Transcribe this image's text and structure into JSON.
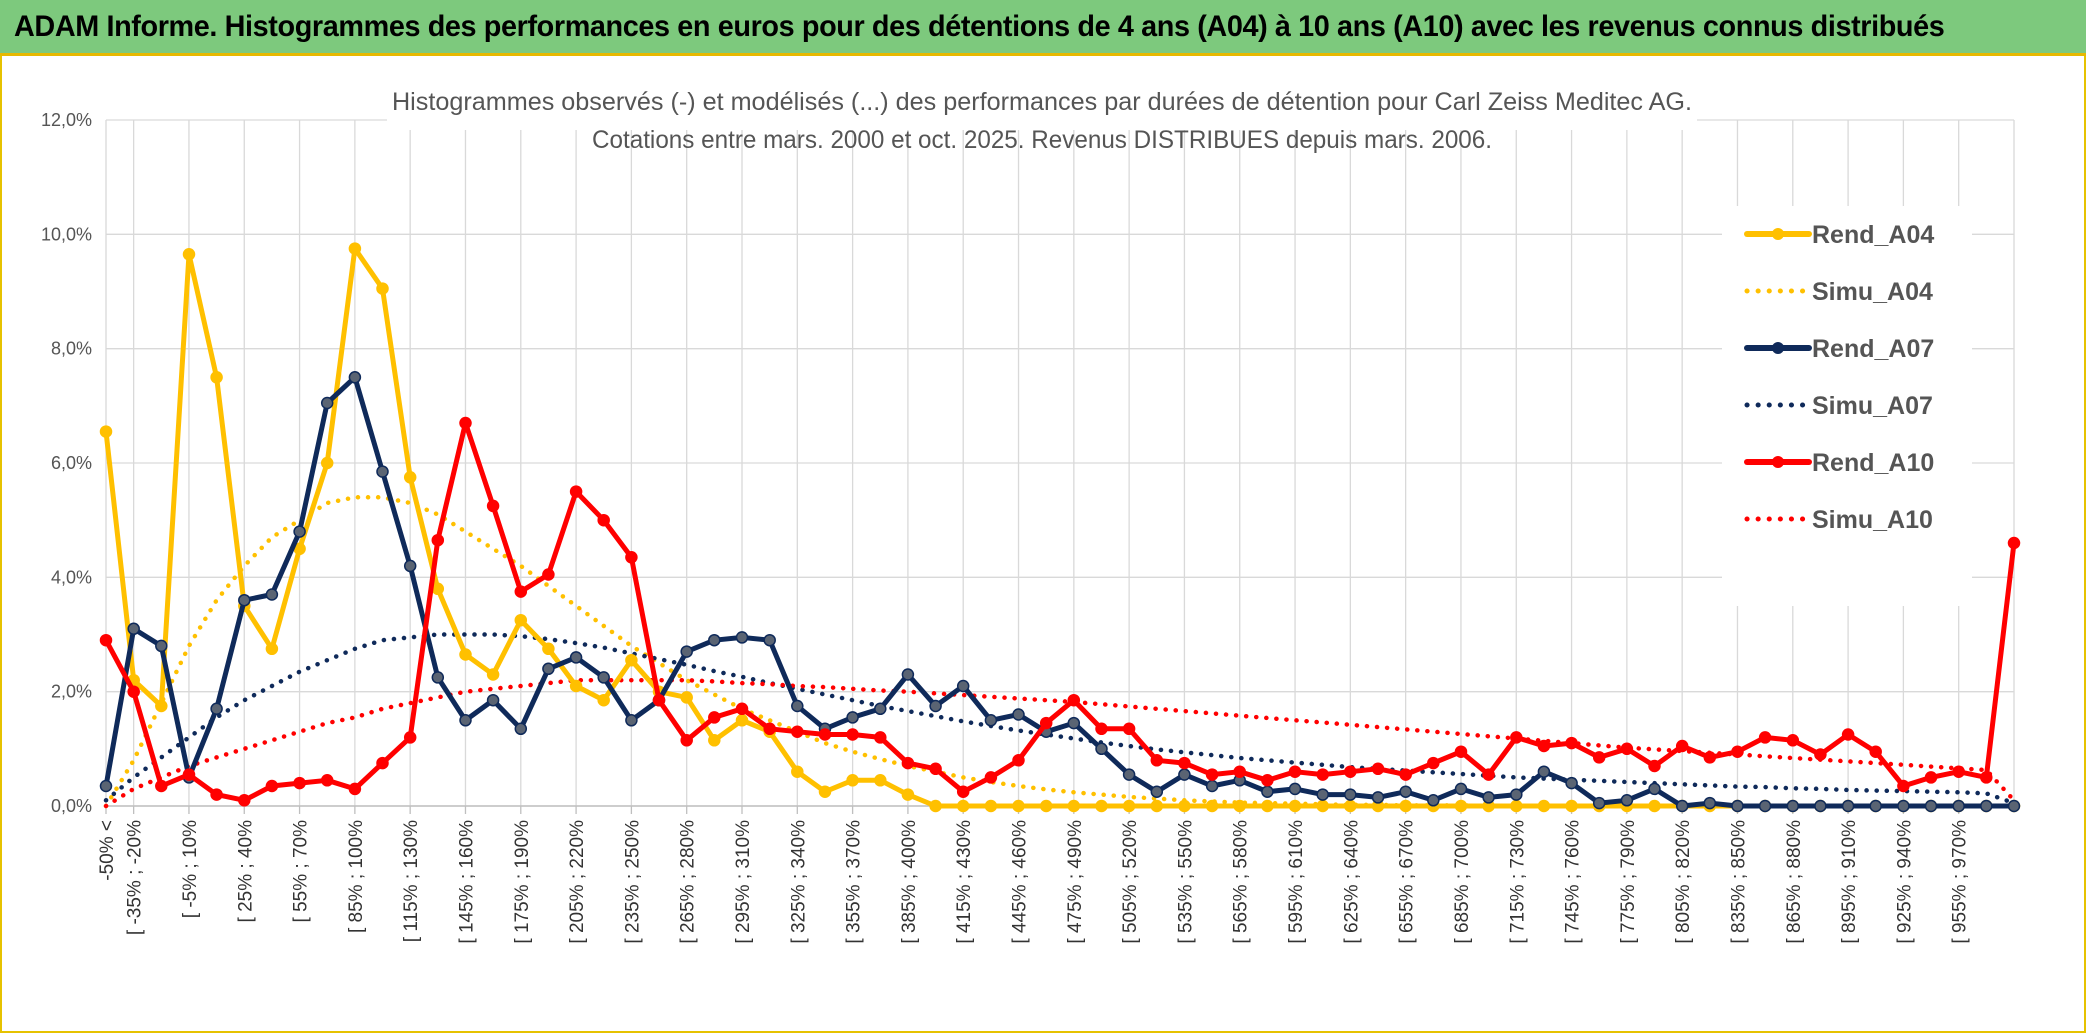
{
  "banner": {
    "title": "ADAM Informe. Histogrammes des performances en euros pour des détentions de 4 ans (A04) à 10 ans (A10) avec les revenus connus distribués"
  },
  "colors": {
    "banner_bg": "#7dc97d",
    "banner_border": "#e7b800",
    "A04": "#ffc000",
    "A07": "#0f2a5a",
    "A10": "#ff0000"
  },
  "chart_data": {
    "type": "line",
    "title_lines": [
      "Histogrammes observés (-) et modélisés (...) des performances par durées de détention pour Carl Zeiss Meditec AG.",
      "Cotations entre mars. 2000 et oct. 2025. Revenus DISTRIBUES depuis mars. 2006."
    ],
    "ylim": [
      0,
      12
    ],
    "y_ticks": [
      "0,0%",
      "2,0%",
      "4,0%",
      "6,0%",
      "8,0%",
      "10,0%",
      "12,0%"
    ],
    "grid": true,
    "legend_position": "right",
    "x_count": 70,
    "x_tick_labels": [
      "-50% <",
      "[ -35% ; -20%",
      "[ -5% ; 10%",
      "[ 25% ; 40%",
      "[ 55% ; 70%",
      "[ 85% ; 100%",
      "[ 115% ; 130%",
      "[ 145% ; 160%",
      "[ 175% ; 190%",
      "[ 205% ; 220%",
      "[ 235% ; 250%",
      "[ 265% ; 280%",
      "[ 295% ; 310%",
      "[ 325% ; 340%",
      "[ 355% ; 370%",
      "[ 385% ; 400%",
      "[ 415% ; 430%",
      "[ 445% ; 460%",
      "[ 475% ; 490%",
      "[ 505% ; 520%",
      "[ 535% ; 550%",
      "[ 565% ; 580%",
      "[ 595% ; 610%",
      "[ 625% ; 640%",
      "[ 655% ; 670%",
      "[ 685% ; 700%",
      "[ 715% ; 730%",
      "[ 745% ; 760%",
      "[ 775% ; 790%",
      "[ 805% ; 820%",
      "[ 835% ; 850%",
      "[ 865% ; 880%",
      "[ 895% ; 910%",
      "[ 925% ; 940%",
      "[ 955% ; 970%"
    ],
    "series": [
      {
        "name": "Rend_A04",
        "style": "solid",
        "markers": true,
        "color": "#ffc000",
        "values": [
          6.55,
          2.2,
          1.75,
          9.65,
          7.5,
          3.5,
          2.75,
          4.5,
          6.0,
          9.75,
          9.05,
          5.75,
          3.8,
          2.65,
          2.3,
          3.25,
          2.75,
          2.1,
          1.85,
          2.55,
          2.0,
          1.9,
          1.15,
          1.5,
          1.3,
          0.6,
          0.25,
          0.45,
          0.45,
          0.2,
          0,
          0,
          0,
          0,
          0,
          0,
          0,
          0,
          0,
          0,
          0,
          0,
          0,
          0,
          0,
          0,
          0,
          0,
          0,
          0,
          0,
          0,
          0,
          0,
          0,
          0,
          0,
          0,
          0,
          0,
          0,
          0,
          0,
          0,
          0,
          0,
          0,
          0,
          0,
          0
        ]
      },
      {
        "name": "Simu_A04",
        "style": "dotted",
        "markers": false,
        "color": "#ffc000",
        "values": [
          0,
          0.8,
          1.8,
          2.8,
          3.6,
          4.2,
          4.7,
          5.0,
          5.3,
          5.4,
          5.4,
          5.3,
          5.1,
          4.8,
          4.5,
          4.2,
          3.85,
          3.5,
          3.15,
          2.8,
          2.5,
          2.2,
          1.95,
          1.7,
          1.5,
          1.3,
          1.1,
          0.95,
          0.82,
          0.7,
          0.6,
          0.5,
          0.42,
          0.35,
          0.29,
          0.24,
          0.2,
          0.16,
          0.13,
          0.1,
          0.08,
          0.06,
          0.05,
          0.04,
          0.03,
          0.02,
          0.02,
          0.01,
          0.01,
          0.01,
          0,
          0,
          0,
          0,
          0,
          0,
          0,
          0,
          0,
          0,
          0,
          0,
          0,
          0,
          0,
          0,
          0,
          0,
          0,
          0
        ]
      },
      {
        "name": "Rend_A07",
        "style": "solid",
        "markers": true,
        "color": "#0f2a5a",
        "values": [
          0.35,
          3.1,
          2.8,
          0.5,
          1.7,
          3.6,
          3.7,
          4.8,
          7.05,
          7.5,
          5.85,
          4.2,
          2.25,
          1.5,
          1.85,
          1.35,
          2.4,
          2.6,
          2.25,
          1.5,
          1.85,
          2.7,
          2.9,
          2.95,
          2.9,
          1.75,
          1.35,
          1.55,
          1.7,
          2.3,
          1.75,
          2.1,
          1.5,
          1.6,
          1.3,
          1.45,
          1.0,
          0.55,
          0.25,
          0.55,
          0.35,
          0.45,
          0.25,
          0.3,
          0.2,
          0.2,
          0.15,
          0.25,
          0.1,
          0.3,
          0.15,
          0.2,
          0.6,
          0.4,
          0.05,
          0.1,
          0.3,
          0.0,
          0.05,
          0,
          0,
          0,
          0,
          0,
          0,
          0,
          0,
          0,
          0,
          0
        ]
      },
      {
        "name": "Simu_A07",
        "style": "dotted",
        "markers": false,
        "color": "#0f2a5a",
        "values": [
          0.1,
          0.5,
          0.85,
          1.2,
          1.55,
          1.85,
          2.1,
          2.35,
          2.55,
          2.75,
          2.9,
          2.95,
          3.0,
          3.0,
          3.0,
          2.97,
          2.92,
          2.85,
          2.77,
          2.67,
          2.57,
          2.47,
          2.36,
          2.26,
          2.15,
          2.05,
          1.95,
          1.85,
          1.75,
          1.66,
          1.57,
          1.48,
          1.4,
          1.32,
          1.25,
          1.18,
          1.11,
          1.05,
          0.99,
          0.94,
          0.89,
          0.84,
          0.8,
          0.76,
          0.72,
          0.68,
          0.65,
          0.62,
          0.59,
          0.56,
          0.53,
          0.5,
          0.48,
          0.46,
          0.44,
          0.42,
          0.4,
          0.38,
          0.36,
          0.34,
          0.33,
          0.31,
          0.3,
          0.28,
          0.27,
          0.26,
          0.25,
          0.24,
          0.22,
          0.05
        ]
      },
      {
        "name": "Rend_A10",
        "style": "solid",
        "markers": true,
        "color": "#ff0000",
        "values": [
          2.9,
          2.0,
          0.35,
          0.55,
          0.2,
          0.1,
          0.35,
          0.4,
          0.45,
          0.3,
          0.75,
          1.2,
          4.65,
          6.7,
          5.25,
          3.75,
          4.05,
          5.5,
          5.0,
          4.35,
          1.85,
          1.15,
          1.55,
          1.7,
          1.35,
          1.3,
          1.25,
          1.25,
          1.2,
          0.75,
          0.65,
          0.25,
          0.5,
          0.8,
          1.45,
          1.85,
          1.35,
          1.35,
          0.8,
          0.75,
          0.55,
          0.6,
          0.45,
          0.6,
          0.55,
          0.6,
          0.65,
          0.55,
          0.75,
          0.95,
          0.55,
          1.2,
          1.05,
          1.1,
          0.85,
          1.0,
          0.7,
          1.05,
          0.85,
          0.95,
          1.2,
          1.15,
          0.9,
          1.25,
          0.95,
          0.35,
          0.5,
          0.6,
          0.5,
          4.6
        ]
      },
      {
        "name": "Simu_A10",
        "style": "dotted",
        "markers": false,
        "color": "#ff0000",
        "values": [
          0.0,
          0.3,
          0.5,
          0.7,
          0.85,
          1.0,
          1.15,
          1.3,
          1.45,
          1.55,
          1.7,
          1.8,
          1.9,
          2.0,
          2.05,
          2.1,
          2.15,
          2.2,
          2.2,
          2.2,
          2.2,
          2.2,
          2.18,
          2.15,
          2.13,
          2.1,
          2.08,
          2.05,
          2.02,
          2.0,
          1.97,
          1.94,
          1.91,
          1.88,
          1.85,
          1.82,
          1.78,
          1.74,
          1.7,
          1.66,
          1.62,
          1.58,
          1.54,
          1.5,
          1.46,
          1.42,
          1.38,
          1.34,
          1.3,
          1.26,
          1.22,
          1.18,
          1.14,
          1.1,
          1.06,
          1.02,
          0.99,
          0.96,
          0.93,
          0.9,
          0.87,
          0.84,
          0.81,
          0.78,
          0.75,
          0.72,
          0.69,
          0.66,
          0.63,
          0.1
        ]
      }
    ]
  }
}
